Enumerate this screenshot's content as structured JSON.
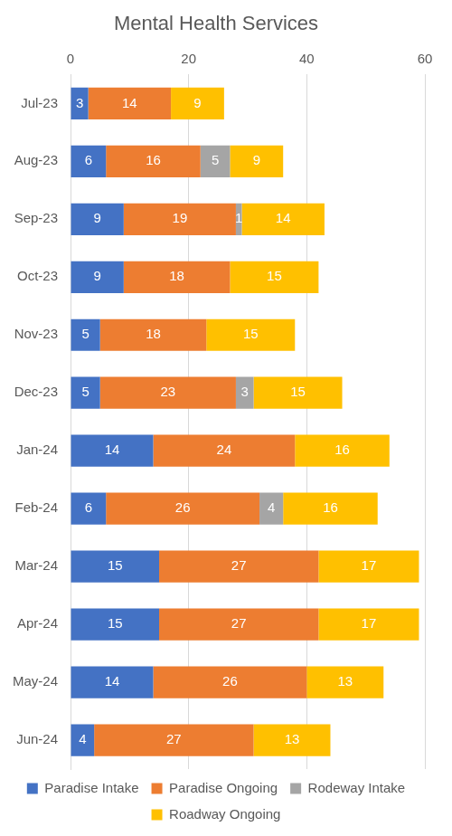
{
  "chart_data": {
    "type": "bar",
    "title": "Mental Health Services",
    "orientation": "horizontal",
    "stacked": true,
    "data_labels": true,
    "grid": true,
    "legend": "bottom",
    "categories": [
      "Jul-23",
      "Aug-23",
      "Sep-23",
      "Oct-23",
      "Nov-23",
      "Dec-23",
      "Jan-24",
      "Feb-24",
      "Mar-24",
      "Apr-24",
      "May-24",
      "Jun-24"
    ],
    "series": [
      {
        "name": "Paradise Intake",
        "color": "#4472c4",
        "values": [
          3,
          6,
          9,
          9,
          5,
          5,
          14,
          6,
          15,
          15,
          14,
          4
        ]
      },
      {
        "name": "Paradise Ongoing",
        "color": "#ed7d31",
        "values": [
          14,
          16,
          19,
          18,
          18,
          23,
          24,
          26,
          27,
          27,
          26,
          27
        ]
      },
      {
        "name": "Rodeway Intake",
        "color": "#a5a5a5",
        "values": [
          null,
          5,
          1,
          null,
          null,
          3,
          null,
          4,
          null,
          null,
          null,
          null
        ]
      },
      {
        "name": "Roadway Ongoing",
        "color": "#ffc000",
        "values": [
          9,
          9,
          14,
          15,
          15,
          15,
          16,
          16,
          17,
          17,
          13,
          13
        ]
      }
    ],
    "xlim": [
      0,
      60
    ],
    "xticks": [
      0,
      20,
      40,
      60
    ]
  }
}
